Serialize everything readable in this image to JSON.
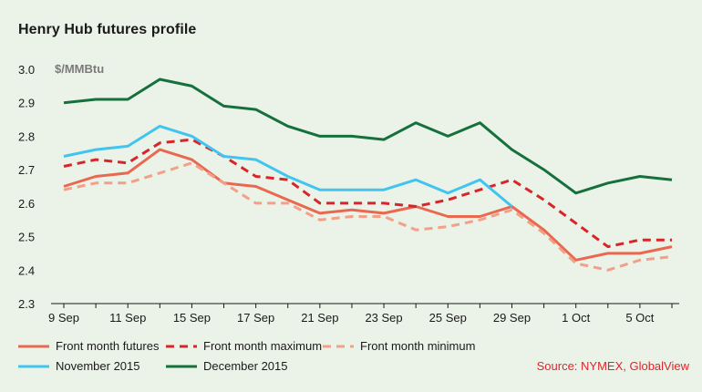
{
  "title": "Henry Hub futures profile",
  "source": "Source: NYMEX, GlobalView",
  "chart_data": {
    "type": "line",
    "title": "Henry Hub futures profile",
    "ylabel": "$/MMBtu",
    "xlabel": "",
    "ylim": [
      2.3,
      3.0
    ],
    "yticks": [
      "2.3",
      "2.4",
      "2.5",
      "2.6",
      "2.7",
      "2.8",
      "2.9",
      "3.0"
    ],
    "x": [
      "9 Sep",
      "10 Sep",
      "11 Sep",
      "14 Sep",
      "15 Sep",
      "16 Sep",
      "17 Sep",
      "18 Sep",
      "21 Sep",
      "22 Sep",
      "23 Sep",
      "24 Sep",
      "25 Sep",
      "28 Sep",
      "29 Sep",
      "30 Sep",
      "1 Oct",
      "2 Oct",
      "5 Oct",
      "6 Oct"
    ],
    "xticks": [
      "9 Sep",
      "11 Sep",
      "15 Sep",
      "17 Sep",
      "21 Sep",
      "23 Sep",
      "25 Sep",
      "29 Sep",
      "1 Oct",
      "5 Oct"
    ],
    "grid": false,
    "legend_position": "bottom",
    "series": [
      {
        "name": "Front month futures",
        "color": "#e8694f",
        "style": "solid",
        "values": [
          2.65,
          2.68,
          2.69,
          2.76,
          2.73,
          2.66,
          2.65,
          2.61,
          2.57,
          2.58,
          2.57,
          2.59,
          2.56,
          2.56,
          2.59,
          2.52,
          2.43,
          2.45,
          2.45,
          2.47
        ]
      },
      {
        "name": "Front month maximum",
        "color": "#d7262b",
        "style": "dashed",
        "values": [
          2.71,
          2.73,
          2.72,
          2.78,
          2.79,
          2.74,
          2.68,
          2.67,
          2.6,
          2.6,
          2.6,
          2.59,
          2.61,
          2.64,
          2.67,
          2.61,
          2.54,
          2.47,
          2.49,
          2.49
        ]
      },
      {
        "name": "Front month minimum",
        "color": "#f2a088",
        "style": "dashed",
        "values": [
          2.64,
          2.66,
          2.66,
          2.69,
          2.72,
          2.66,
          2.6,
          2.6,
          2.55,
          2.56,
          2.56,
          2.52,
          2.53,
          2.55,
          2.58,
          2.51,
          2.42,
          2.4,
          2.43,
          2.44
        ]
      },
      {
        "name": "November 2015",
        "color": "#41c4ef",
        "style": "solid",
        "values": [
          2.74,
          2.76,
          2.77,
          2.83,
          2.8,
          2.74,
          2.73,
          2.68,
          2.64,
          2.64,
          2.64,
          2.67,
          2.63,
          2.67,
          2.59,
          null,
          null,
          null,
          null,
          null
        ]
      },
      {
        "name": "December 2015",
        "color": "#16703c",
        "style": "solid",
        "values": [
          2.9,
          2.91,
          2.91,
          2.97,
          2.95,
          2.89,
          2.88,
          2.83,
          2.8,
          2.8,
          2.79,
          2.84,
          2.8,
          2.84,
          2.76,
          2.7,
          2.63,
          2.66,
          2.68,
          2.67
        ]
      }
    ]
  }
}
